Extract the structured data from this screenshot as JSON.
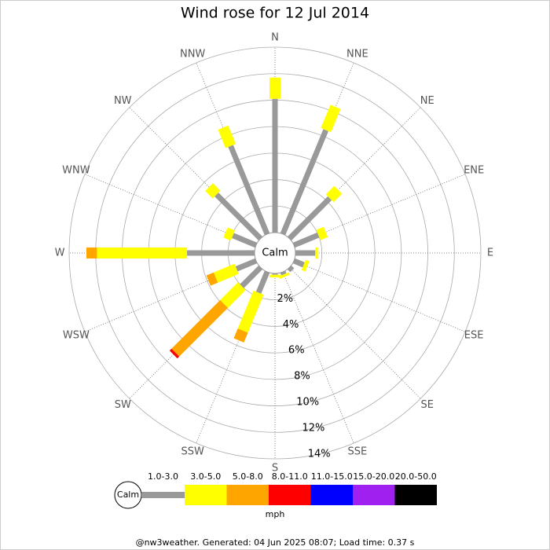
{
  "chart_data": {
    "type": "windrose",
    "title": "Wind rose for 12 Jul 2014",
    "categories": [
      "N",
      "NNE",
      "NE",
      "ENE",
      "E",
      "ESE",
      "SE",
      "SSE",
      "S",
      "SSW",
      "SW",
      "WSW",
      "W",
      "WNW",
      "NW",
      "NNW"
    ],
    "series": [
      {
        "name": "1.0-3.0",
        "color": "#999999",
        "values": [
          10.1,
          8.5,
          4.3,
          2.0,
          1.5,
          0.8,
          0.3,
          0.2,
          0.1,
          1.7,
          2.0,
          1.6,
          5.1,
          1.9,
          4.7,
          7.2
        ]
      },
      {
        "name": "3.0-5.0",
        "color": "#ffff00",
        "values": [
          1.6,
          1.9,
          0.9,
          0.6,
          0.2,
          0.3,
          0,
          0.2,
          0.2,
          3.1,
          1.9,
          1.7,
          6.8,
          0.6,
          0.8,
          1.5
        ]
      },
      {
        "name": "5.0-8.0",
        "color": "#ffa500",
        "values": [
          0,
          0,
          0,
          0,
          0,
          0,
          0,
          0,
          0,
          0.8,
          5.2,
          0.6,
          0.8,
          0,
          0,
          0
        ]
      },
      {
        "name": "8.0-11.0",
        "color": "#ff0000",
        "values": [
          0,
          0,
          0,
          0,
          0,
          0,
          0,
          0,
          0,
          0,
          0.2,
          0,
          0,
          0,
          0,
          0
        ]
      },
      {
        "name": "11.0-15.0",
        "color": "#0000ff",
        "values": [
          0,
          0,
          0,
          0,
          0,
          0,
          0,
          0,
          0,
          0,
          0,
          0,
          0,
          0,
          0,
          0
        ]
      },
      {
        "name": "15.0-20.0",
        "color": "#a020f0",
        "values": [
          0,
          0,
          0,
          0,
          0,
          0,
          0,
          0,
          0,
          0,
          0,
          0,
          0,
          0,
          0,
          0
        ]
      },
      {
        "name": "20.0-50.0",
        "color": "#000000",
        "values": [
          0,
          0,
          0,
          0,
          0,
          0,
          0,
          0,
          0,
          0,
          0,
          0,
          0,
          0,
          0,
          0
        ]
      }
    ],
    "rlim": [
      0,
      14
    ],
    "rticks": [
      {
        "value": 2,
        "label": "2%"
      },
      {
        "value": 4,
        "label": "4%"
      },
      {
        "value": 6,
        "label": "6%"
      },
      {
        "value": 8,
        "label": "8%"
      },
      {
        "value": 10,
        "label": "10%"
      },
      {
        "value": 12,
        "label": "12%"
      },
      {
        "value": 14,
        "label": "14%"
      }
    ],
    "calm_label": "Calm",
    "legend_title": "mph",
    "footer": "@nw3weather. Generated: 04 Jun 2025 08:07; Load time: 0.37 s"
  }
}
